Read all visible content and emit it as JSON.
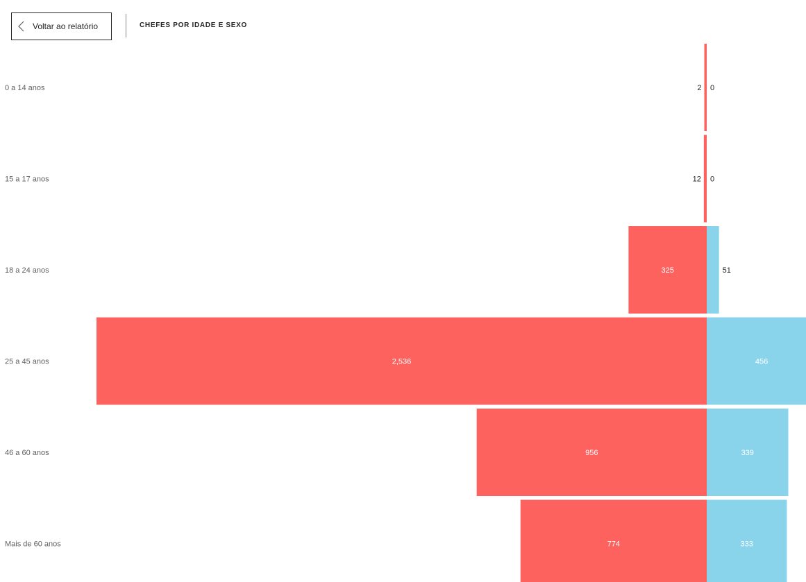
{
  "header": {
    "back_label": "Voltar ao relatório",
    "title": "CHEFES POR IDADE E SEXO",
    "back_icon": "chevron-left-icon"
  },
  "colors": {
    "left_series": "#fd625e",
    "right_series": "#8ad4eb"
  },
  "chart_data": {
    "type": "bar",
    "orientation": "horizontal-diverging",
    "categories": [
      "0 a 14 anos",
      "15 a 17 anos",
      "18 a 24 anos",
      "25 a 45 anos",
      "46 a 60 anos",
      "Mais de 60 anos"
    ],
    "series": [
      {
        "values": [
          2,
          12,
          325,
          2536,
          956,
          774
        ],
        "labels": [
          "2",
          "12",
          "325",
          "2,536",
          "956",
          "774"
        ],
        "color": "#fd625e",
        "side": "left"
      },
      {
        "values": [
          0,
          0,
          51,
          456,
          339,
          333
        ],
        "labels": [
          "0",
          "0",
          "51",
          "456",
          "339",
          "333"
        ],
        "color": "#8ad4eb",
        "side": "right"
      }
    ],
    "legend": "none",
    "grid": false
  }
}
